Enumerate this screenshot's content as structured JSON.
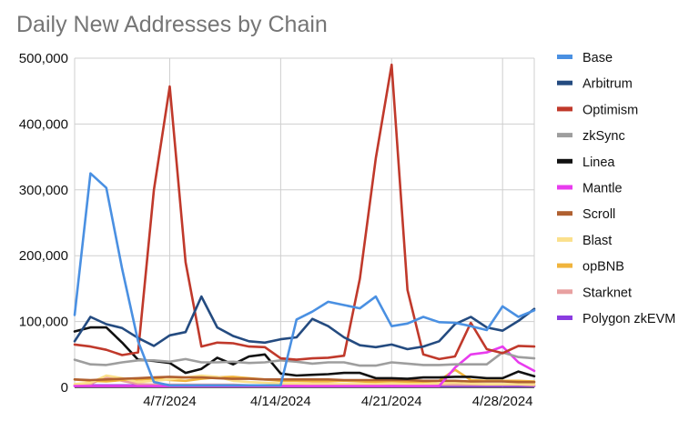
{
  "chart_data": {
    "type": "line",
    "title": "Daily New Addresses by Chain",
    "xlabel": "",
    "ylabel": "",
    "x": [
      "2024-04-01",
      "2024-04-02",
      "2024-04-03",
      "2024-04-04",
      "2024-04-05",
      "2024-04-06",
      "2024-04-07",
      "2024-04-08",
      "2024-04-09",
      "2024-04-10",
      "2024-04-11",
      "2024-04-12",
      "2024-04-13",
      "2024-04-14",
      "2024-04-15",
      "2024-04-16",
      "2024-04-17",
      "2024-04-18",
      "2024-04-19",
      "2024-04-20",
      "2024-04-21",
      "2024-04-22",
      "2024-04-23",
      "2024-04-24",
      "2024-04-25",
      "2024-04-26",
      "2024-04-27",
      "2024-04-28",
      "2024-04-29",
      "2024-04-30"
    ],
    "x_ticks": [
      "4/7/2024",
      "4/14/2024",
      "4/21/2024",
      "4/28/2024"
    ],
    "ylim": [
      0,
      500000
    ],
    "y_ticks": [
      "0",
      "100,000",
      "200,000",
      "300,000",
      "400,000",
      "500,000"
    ],
    "y_tick_values": [
      0,
      100000,
      200000,
      300000,
      400000,
      500000
    ],
    "grid": true,
    "legend": "right",
    "series": [
      {
        "name": "Base",
        "color": "#4a90e2",
        "values": [
          110000,
          325000,
          303000,
          180000,
          70000,
          8000,
          3000,
          3000,
          3000,
          3000,
          3000,
          3000,
          3000,
          3000,
          103000,
          115000,
          130000,
          125000,
          120000,
          138000,
          93000,
          97000,
          107000,
          99000,
          98000,
          93000,
          87000,
          123000,
          107000,
          117000
        ]
      },
      {
        "name": "Arbitrum",
        "color": "#244b80",
        "values": [
          70000,
          107000,
          96000,
          90000,
          75000,
          63000,
          79000,
          84000,
          138000,
          91000,
          78000,
          70000,
          68000,
          73000,
          76000,
          104000,
          93000,
          76000,
          64000,
          61000,
          65000,
          58000,
          62000,
          70000,
          96000,
          107000,
          91000,
          86000,
          101000,
          119000
        ]
      },
      {
        "name": "Optimism",
        "color": "#c0392b",
        "values": [
          65000,
          62000,
          57000,
          49000,
          53000,
          300000,
          457000,
          190000,
          62000,
          68000,
          67000,
          62000,
          61000,
          44000,
          42000,
          44000,
          45000,
          48000,
          165000,
          348000,
          490000,
          148000,
          50000,
          43000,
          47000,
          98000,
          58000,
          52000,
          63000,
          62000
        ]
      },
      {
        "name": "zkSync",
        "color": "#9e9e9e",
        "values": [
          42000,
          35000,
          34000,
          38000,
          41000,
          41000,
          39000,
          43000,
          38000,
          38000,
          39000,
          37000,
          38000,
          41000,
          39000,
          36000,
          38000,
          38000,
          33000,
          33000,
          38000,
          36000,
          34000,
          34000,
          35000,
          35000,
          35000,
          53000,
          46000,
          44000
        ]
      },
      {
        "name": "Linea",
        "color": "#111111",
        "values": [
          85000,
          91000,
          91000,
          68000,
          42000,
          40000,
          37000,
          22000,
          28000,
          45000,
          35000,
          47000,
          50000,
          21000,
          18000,
          19000,
          20000,
          22000,
          22000,
          14000,
          14000,
          13000,
          15000,
          15000,
          16000,
          16000,
          14000,
          14000,
          24000,
          17000
        ]
      },
      {
        "name": "Mantle",
        "color": "#e83cee",
        "values": [
          2000,
          2000,
          2000,
          2000,
          2000,
          2000,
          2000,
          2000,
          2000,
          2000,
          2000,
          2000,
          2000,
          2000,
          2000,
          2000,
          2000,
          2000,
          2000,
          2000,
          2000,
          2000,
          2000,
          2000,
          30000,
          50000,
          53000,
          62000,
          38000,
          25000
        ]
      },
      {
        "name": "Scroll",
        "color": "#b06030",
        "values": [
          12000,
          11000,
          12000,
          13000,
          14000,
          15000,
          16000,
          15000,
          15000,
          14000,
          13000,
          13000,
          12000,
          12000,
          12000,
          12000,
          12000,
          11000,
          11000,
          11000,
          11000,
          11000,
          10000,
          10000,
          10000,
          9000,
          9000,
          9000,
          8000,
          8000
        ]
      },
      {
        "name": "Blast",
        "color": "#fbe08c",
        "values": [
          5000,
          7000,
          18000,
          14000,
          8000,
          10000,
          12000,
          15000,
          18000,
          16000,
          10000,
          8000,
          7000,
          6000,
          6000,
          5000,
          5000,
          5000,
          5000,
          5000,
          6000,
          5000,
          5000,
          6000,
          7000,
          6000,
          5000,
          5000,
          5000,
          5000
        ]
      },
      {
        "name": "opBNB",
        "color": "#f0b43c",
        "values": [
          12000,
          10000,
          9000,
          11000,
          12000,
          13000,
          11000,
          10000,
          13000,
          15000,
          16000,
          14000,
          12000,
          10000,
          10000,
          9000,
          9000,
          10000,
          9000,
          8000,
          9000,
          8000,
          8000,
          10000,
          27000,
          11000,
          10000,
          10000,
          10000,
          9000
        ]
      },
      {
        "name": "Starknet",
        "color": "#e8a0a0",
        "values": [
          3000,
          5000,
          16000,
          10000,
          5000,
          4000,
          4000,
          4000,
          4000,
          4000,
          4000,
          3000,
          3000,
          3000,
          5000,
          5000,
          5000,
          4000,
          4000,
          4000,
          4000,
          4000,
          4000,
          4000,
          4000,
          4000,
          4000,
          4000,
          4000,
          3000
        ]
      },
      {
        "name": "Polygon zkEVM",
        "color": "#8a3ce0",
        "values": [
          3000,
          3000,
          3000,
          3000,
          3000,
          2000,
          2000,
          2000,
          2000,
          2000,
          2000,
          2000,
          2000,
          2000,
          2000,
          2000,
          2000,
          2000,
          2000,
          2000,
          2000,
          2000,
          2000,
          2000,
          2000,
          2000,
          2000,
          2000,
          2000,
          2000
        ]
      }
    ]
  }
}
